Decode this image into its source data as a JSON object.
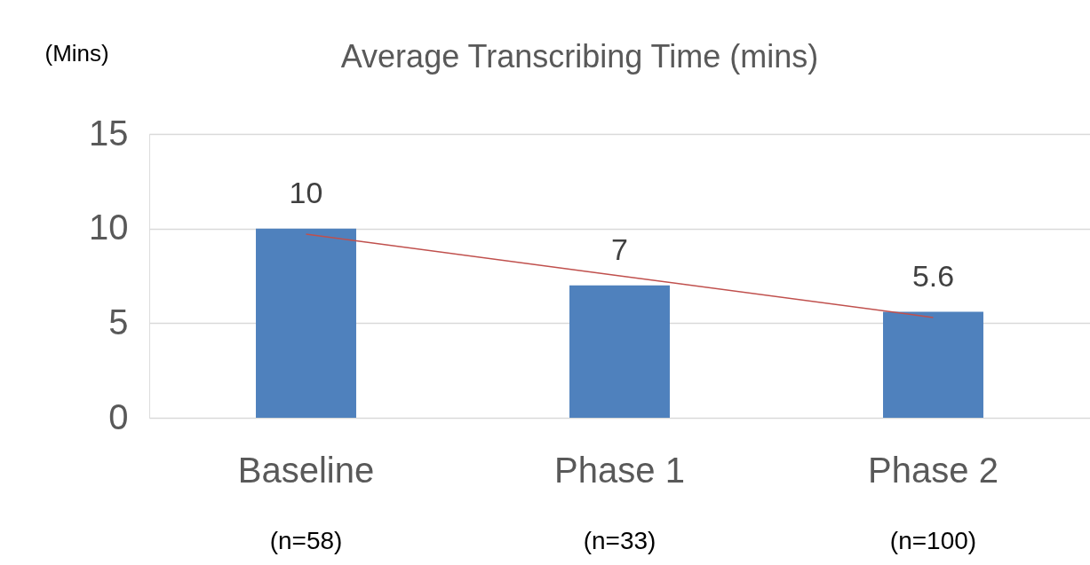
{
  "chart_data": {
    "type": "bar",
    "title": "Average Transcribing Time (mins)",
    "ylabel": "(Mins)",
    "categories": [
      "Baseline",
      "Phase 1",
      "Phase 2"
    ],
    "series": [
      {
        "color": "#4f81bd",
        "values": [
          10,
          7,
          5.6
        ],
        "value_labels": [
          "10",
          "7",
          "5.6"
        ]
      },
      {
        "type": "line",
        "color": "#c0504d",
        "values": [
          9.7,
          7.5,
          5.3
        ]
      }
    ],
    "ylim": [
      0,
      15
    ],
    "yticks": [
      0,
      5,
      10,
      15
    ],
    "grid": "y",
    "annotations": [
      "(n=58)",
      "(n=33)",
      "(n=100)"
    ]
  }
}
